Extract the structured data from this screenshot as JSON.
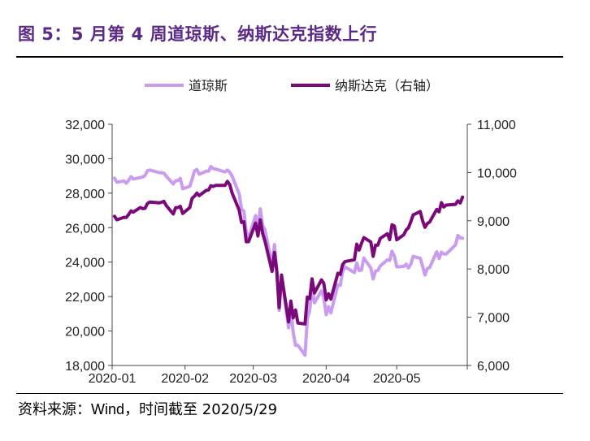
{
  "figure": {
    "title": "图 5：5 月第 4 周道琼斯、纳斯达克指数上行",
    "source_label": "资料来源：",
    "source_name": "Wind",
    "source_suffix": "，时间截至 2020/5/29"
  },
  "chart_data": {
    "type": "line",
    "title": "",
    "xlabel": "",
    "ylabel": "",
    "legend_position": "top-center",
    "grid": false,
    "x_tick_labels": [
      "2020-01",
      "2020-02",
      "2020-03",
      "2020-04",
      "2020-05"
    ],
    "y_left": {
      "range": [
        18000,
        32000
      ],
      "ticks": [
        "18,000",
        "20,000",
        "22,000",
        "24,000",
        "26,000",
        "28,000",
        "30,000",
        "32,000"
      ]
    },
    "y_right": {
      "range": [
        6000,
        11000
      ],
      "ticks": [
        "6,000",
        "7,000",
        "8,000",
        "9,000",
        "10,000",
        "11,000"
      ]
    },
    "series": [
      {
        "name": "道琼斯",
        "axis": "left",
        "color": "#c99cf0",
        "x": [
          "2020-01-02",
          "2020-01-03",
          "2020-01-06",
          "2020-01-07",
          "2020-01-08",
          "2020-01-09",
          "2020-01-10",
          "2020-01-13",
          "2020-01-14",
          "2020-01-15",
          "2020-01-16",
          "2020-01-17",
          "2020-01-21",
          "2020-01-22",
          "2020-01-23",
          "2020-01-24",
          "2020-01-27",
          "2020-01-28",
          "2020-01-29",
          "2020-01-30",
          "2020-01-31",
          "2020-02-03",
          "2020-02-04",
          "2020-02-05",
          "2020-02-06",
          "2020-02-07",
          "2020-02-10",
          "2020-02-11",
          "2020-02-12",
          "2020-02-13",
          "2020-02-14",
          "2020-02-18",
          "2020-02-19",
          "2020-02-20",
          "2020-02-21",
          "2020-02-24",
          "2020-02-25",
          "2020-02-26",
          "2020-02-27",
          "2020-02-28",
          "2020-03-02",
          "2020-03-03",
          "2020-03-04",
          "2020-03-05",
          "2020-03-06",
          "2020-03-09",
          "2020-03-10",
          "2020-03-11",
          "2020-03-12",
          "2020-03-13",
          "2020-03-16",
          "2020-03-17",
          "2020-03-18",
          "2020-03-19",
          "2020-03-20",
          "2020-03-23",
          "2020-03-24",
          "2020-03-25",
          "2020-03-26",
          "2020-03-27",
          "2020-03-30",
          "2020-03-31",
          "2020-04-01",
          "2020-04-02",
          "2020-04-03",
          "2020-04-06",
          "2020-04-07",
          "2020-04-08",
          "2020-04-09",
          "2020-04-13",
          "2020-04-14",
          "2020-04-15",
          "2020-04-16",
          "2020-04-17",
          "2020-04-20",
          "2020-04-21",
          "2020-04-22",
          "2020-04-23",
          "2020-04-24",
          "2020-04-27",
          "2020-04-28",
          "2020-04-29",
          "2020-04-30",
          "2020-05-01",
          "2020-05-04",
          "2020-05-05",
          "2020-05-06",
          "2020-05-07",
          "2020-05-08",
          "2020-05-11",
          "2020-05-12",
          "2020-05-13",
          "2020-05-14",
          "2020-05-15",
          "2020-05-18",
          "2020-05-19",
          "2020-05-20",
          "2020-05-21",
          "2020-05-22",
          "2020-05-26",
          "2020-05-27",
          "2020-05-28",
          "2020-05-29"
        ],
        "values": [
          28869,
          28634,
          28704,
          28584,
          28745,
          28957,
          28824,
          28908,
          28940,
          29030,
          29298,
          29348,
          29197,
          29186,
          29160,
          28990,
          28536,
          28723,
          28735,
          28860,
          28256,
          28400,
          28808,
          29291,
          29380,
          29103,
          29277,
          29277,
          29551,
          29424,
          29399,
          29233,
          29348,
          29220,
          28992,
          27961,
          27081,
          26957,
          25767,
          25409,
          26703,
          25918,
          27091,
          26121,
          25865,
          23851,
          25018,
          23553,
          21200,
          23186,
          20189,
          21238,
          19899,
          19174,
          19173,
          18592,
          20705,
          21201,
          22552,
          21637,
          22328,
          21917,
          20944,
          21413,
          21053,
          22680,
          22654,
          23434,
          23720,
          23391,
          23949,
          23504,
          23538,
          24242,
          23650,
          23019,
          23476,
          23516,
          23775,
          24134,
          24102,
          24634,
          24346,
          23724,
          23749,
          23883,
          23665,
          23876,
          24331,
          24222,
          23765,
          23248,
          23625,
          23686,
          24598,
          24207,
          24576,
          24474,
          24465,
          24995,
          25548,
          25401,
          25383
        ]
      },
      {
        "name": "纳斯达克（右轴）",
        "axis": "right",
        "color": "#7a0a7a",
        "x": [
          "2020-01-02",
          "2020-01-03",
          "2020-01-06",
          "2020-01-07",
          "2020-01-08",
          "2020-01-09",
          "2020-01-10",
          "2020-01-13",
          "2020-01-14",
          "2020-01-15",
          "2020-01-16",
          "2020-01-17",
          "2020-01-21",
          "2020-01-22",
          "2020-01-23",
          "2020-01-24",
          "2020-01-27",
          "2020-01-28",
          "2020-01-29",
          "2020-01-30",
          "2020-01-31",
          "2020-02-03",
          "2020-02-04",
          "2020-02-05",
          "2020-02-06",
          "2020-02-07",
          "2020-02-10",
          "2020-02-11",
          "2020-02-12",
          "2020-02-13",
          "2020-02-14",
          "2020-02-18",
          "2020-02-19",
          "2020-02-20",
          "2020-02-21",
          "2020-02-24",
          "2020-02-25",
          "2020-02-26",
          "2020-02-27",
          "2020-02-28",
          "2020-03-02",
          "2020-03-03",
          "2020-03-04",
          "2020-03-05",
          "2020-03-06",
          "2020-03-09",
          "2020-03-10",
          "2020-03-11",
          "2020-03-12",
          "2020-03-13",
          "2020-03-16",
          "2020-03-17",
          "2020-03-18",
          "2020-03-19",
          "2020-03-20",
          "2020-03-23",
          "2020-03-24",
          "2020-03-25",
          "2020-03-26",
          "2020-03-27",
          "2020-03-30",
          "2020-03-31",
          "2020-04-01",
          "2020-04-02",
          "2020-04-03",
          "2020-04-06",
          "2020-04-07",
          "2020-04-08",
          "2020-04-09",
          "2020-04-13",
          "2020-04-14",
          "2020-04-15",
          "2020-04-16",
          "2020-04-17",
          "2020-04-20",
          "2020-04-21",
          "2020-04-22",
          "2020-04-23",
          "2020-04-24",
          "2020-04-27",
          "2020-04-28",
          "2020-04-29",
          "2020-04-30",
          "2020-05-01",
          "2020-05-04",
          "2020-05-05",
          "2020-05-06",
          "2020-05-07",
          "2020-05-08",
          "2020-05-11",
          "2020-05-12",
          "2020-05-13",
          "2020-05-14",
          "2020-05-15",
          "2020-05-18",
          "2020-05-19",
          "2020-05-20",
          "2020-05-21",
          "2020-05-22",
          "2020-05-26",
          "2020-05-27",
          "2020-05-28",
          "2020-05-29"
        ],
        "values": [
          9092,
          9020,
          9071,
          9068,
          9129,
          9203,
          9178,
          9274,
          9251,
          9258,
          9357,
          9388,
          9370,
          9383,
          9402,
          9314,
          9139,
          9269,
          9275,
          9298,
          9150,
          9273,
          9467,
          9508,
          9572,
          9520,
          9629,
          9638,
          9725,
          9711,
          9732,
          9732,
          9817,
          9750,
          9576,
          9221,
          8965,
          8980,
          8566,
          8567,
          8952,
          8684,
          9018,
          8738,
          8575,
          7950,
          8344,
          7952,
          7201,
          7875,
          6904,
          7334,
          6989,
          7150,
          6879,
          6860,
          7418,
          7384,
          7797,
          7502,
          7774,
          7700,
          7360,
          7487,
          7373,
          7913,
          7887,
          8090,
          8153,
          8192,
          8515,
          8393,
          8532,
          8650,
          8560,
          8263,
          8495,
          8494,
          8634,
          8730,
          8607,
          8915,
          8890,
          8605,
          8710,
          8809,
          8854,
          8980,
          9121,
          9192,
          9002,
          8863,
          8943,
          8975,
          9235,
          9185,
          9375,
          9285,
          9325,
          9340,
          9412,
          9368,
          9490
        ]
      }
    ]
  }
}
